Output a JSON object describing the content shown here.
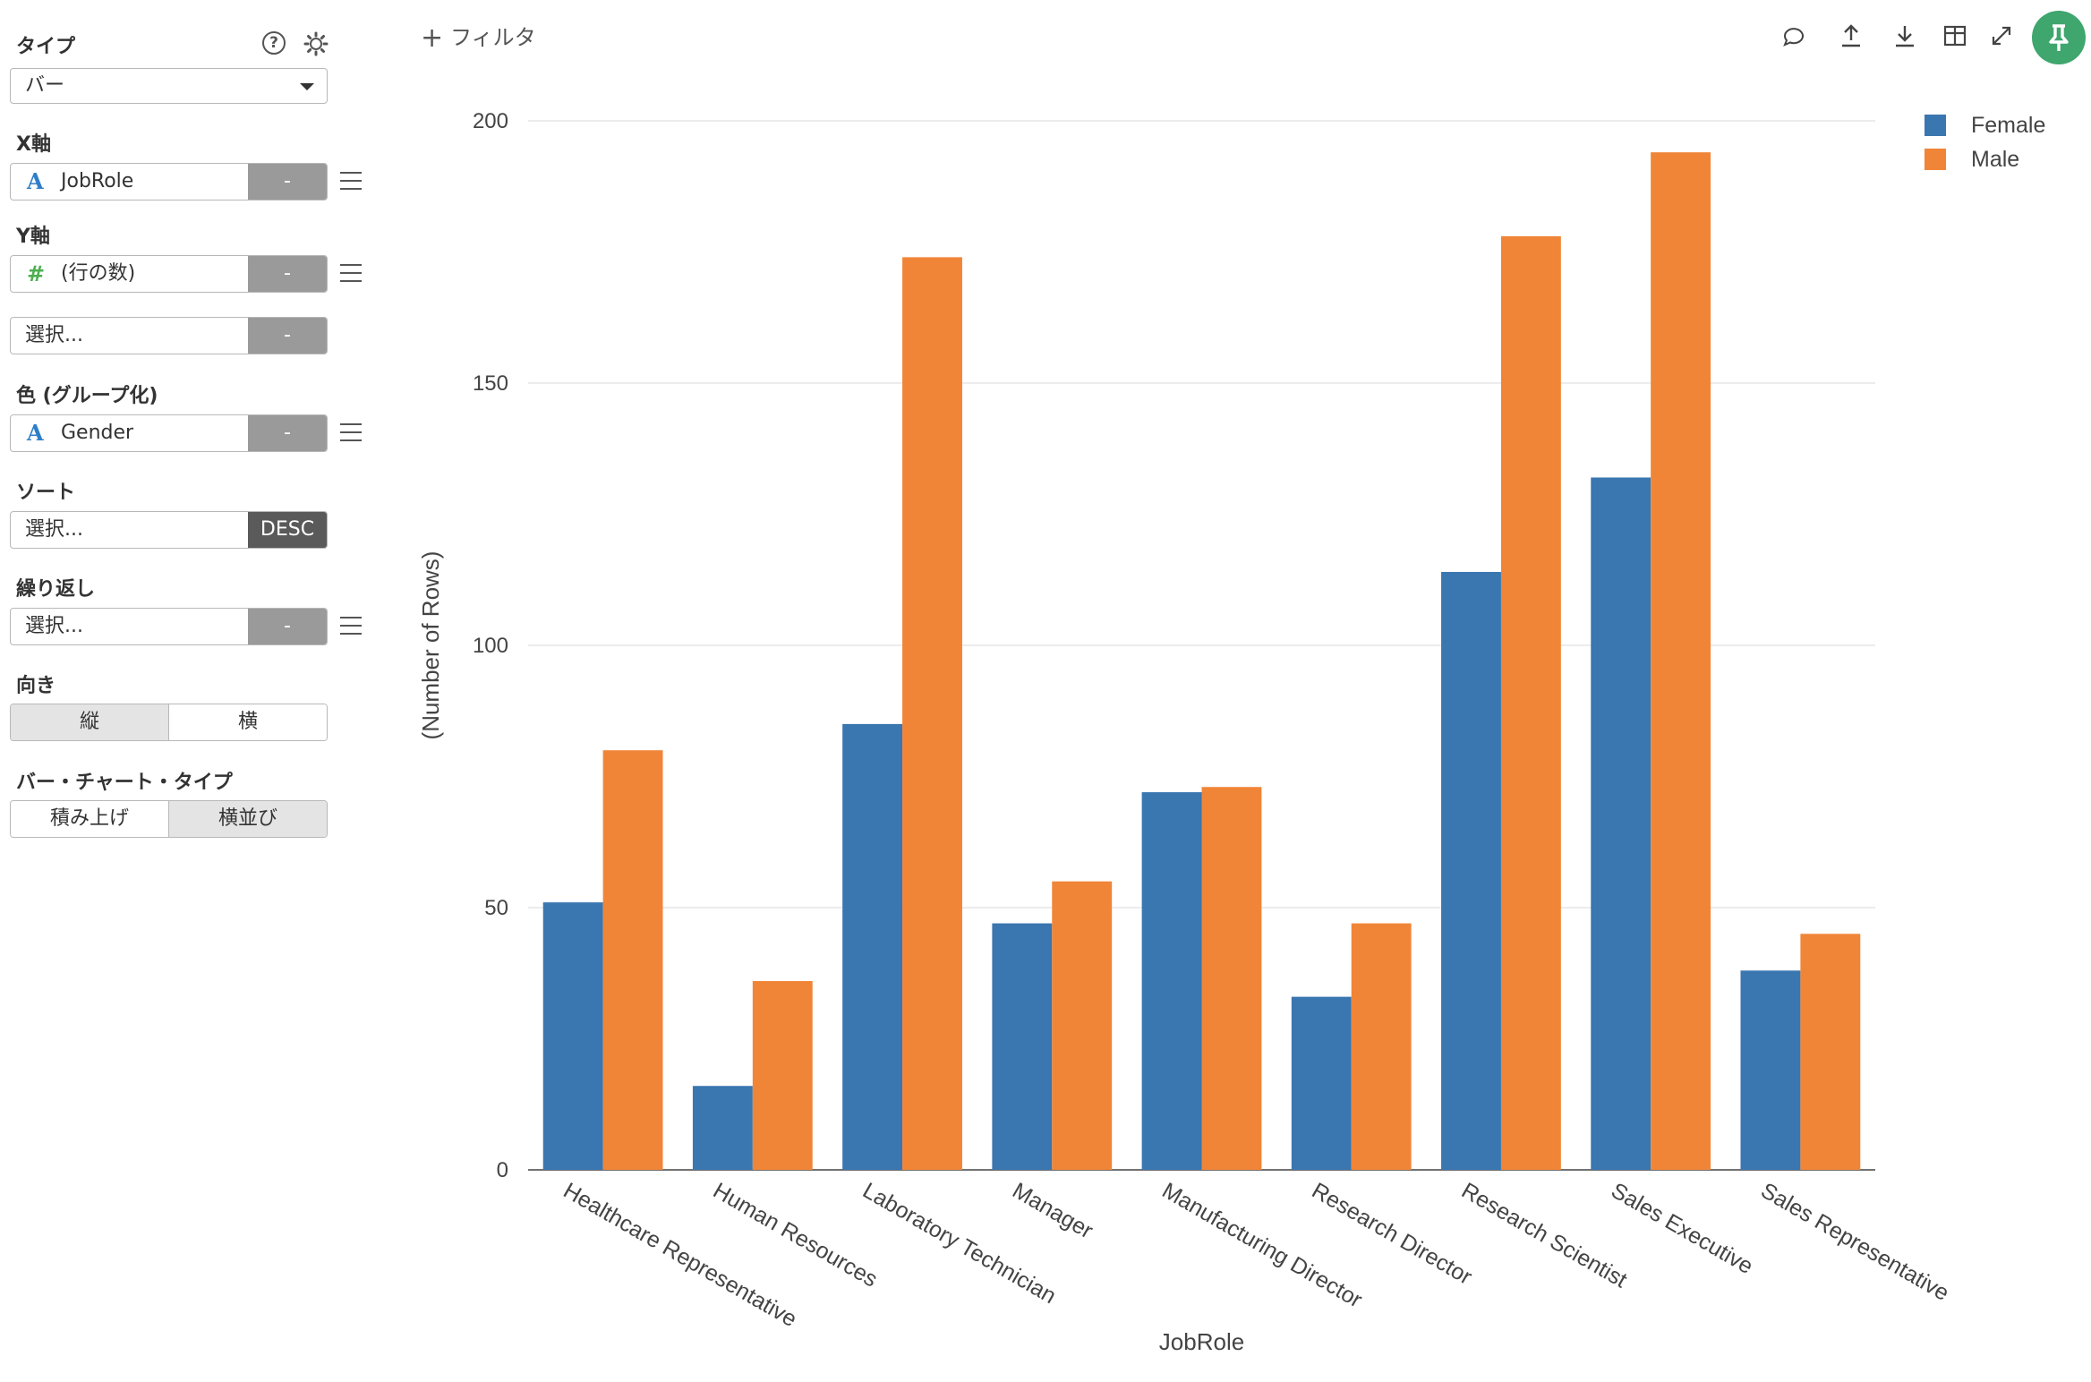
{
  "sidebar": {
    "type_label": "タイプ",
    "type_value": "バー",
    "x_label": "X軸",
    "x_field": "JobRole",
    "x_btn": "-",
    "y_label": "Y軸",
    "y_field": "(行の数)",
    "y_btn": "-",
    "y2_field": "選択...",
    "y2_btn": "-",
    "color_label": "色 (グループ化)",
    "color_field": "Gender",
    "color_btn": "-",
    "sort_label": "ソート",
    "sort_field": "選択...",
    "sort_btn": "DESC",
    "repeat_label": "繰り返し",
    "repeat_field": "選択...",
    "repeat_btn": "-",
    "orientation_label": "向き",
    "orientation_options": [
      "縦",
      "横"
    ],
    "bar_type_label": "バー・チャート・タイプ",
    "bar_type_options": [
      "積み上げ",
      "横並び"
    ]
  },
  "toolbar": {
    "filter_label": "フィルタ",
    "icons": [
      "comment-icon",
      "upload-icon",
      "download-icon",
      "table-icon",
      "expand-icon",
      "pin-icon"
    ]
  },
  "colors": {
    "female": "#3a76b0",
    "male": "#f08538",
    "accent": "#3fa66e"
  },
  "chart_data": {
    "type": "bar",
    "categories": [
      "Healthcare Representative",
      "Human Resources",
      "Laboratory Technician",
      "Manager",
      "Manufacturing Director",
      "Research Director",
      "Research Scientist",
      "Sales Executive",
      "Sales Representative"
    ],
    "series": [
      {
        "name": "Female",
        "values": [
          51,
          16,
          85,
          47,
          72,
          33,
          114,
          132,
          38
        ]
      },
      {
        "name": "Male",
        "values": [
          80,
          36,
          174,
          55,
          73,
          47,
          178,
          194,
          45
        ]
      }
    ],
    "xlabel": "JobRole",
    "ylabel": "(Number of Rows)",
    "ylim": [
      0,
      200
    ],
    "yticks": [
      0,
      50,
      100,
      150,
      200
    ],
    "legend_position": "top-right",
    "grid": true
  }
}
